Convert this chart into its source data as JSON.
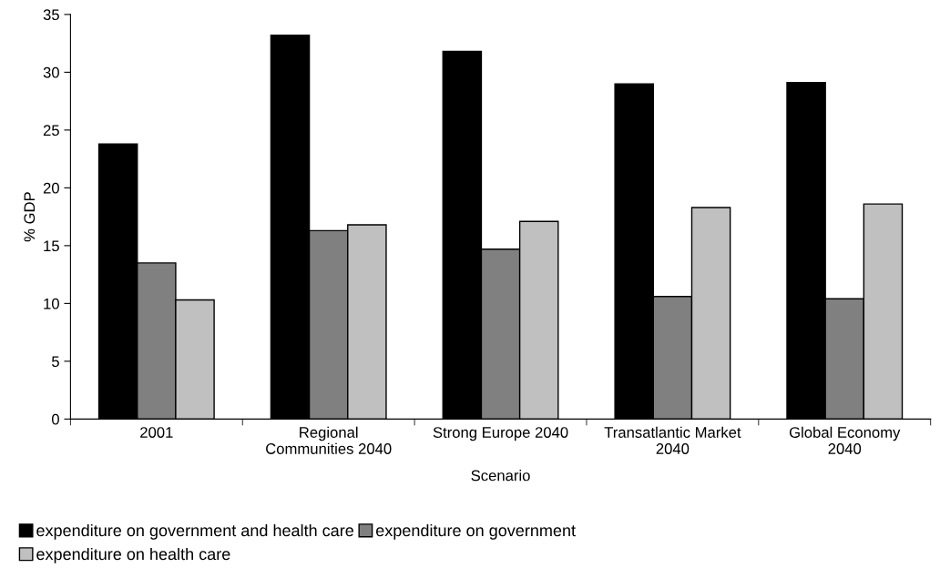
{
  "chart_data": {
    "type": "bar",
    "xlabel": "Scenario",
    "ylabel": "% GDP",
    "categories": [
      "2001",
      "Regional\nCommunities 2040",
      "Strong Europe 2040",
      "Transatlantic Market\n2040",
      "Global Economy\n2040"
    ],
    "series": [
      {
        "name": "expenditure on government and health care",
        "color": "#000000",
        "values": [
          23.8,
          33.2,
          31.8,
          29.0,
          29.1
        ]
      },
      {
        "name": "expenditure on government",
        "color": "#808080",
        "values": [
          13.5,
          16.3,
          14.7,
          10.6,
          10.4
        ]
      },
      {
        "name": "expenditure on health care",
        "color": "#c0c0c0",
        "values": [
          10.3,
          16.8,
          17.1,
          18.3,
          18.6
        ]
      }
    ],
    "ylim": [
      0,
      35
    ],
    "yticks": [
      0,
      5,
      10,
      15,
      20,
      25,
      30,
      35
    ],
    "grid": false,
    "legend": "bottom"
  }
}
